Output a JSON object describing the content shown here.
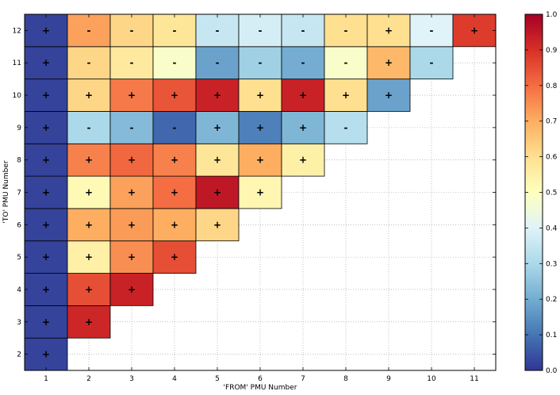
{
  "chart_data": {
    "type": "heatmap",
    "xlabel": "'FROM' PMU Number",
    "ylabel": "'TO' PMU Number",
    "x_ticks": [
      "1",
      "2",
      "3",
      "4",
      "5",
      "6",
      "7",
      "8",
      "9",
      "10",
      "11"
    ],
    "y_ticks": [
      "2",
      "3",
      "4",
      "5",
      "6",
      "7",
      "8",
      "9",
      "10",
      "11",
      "12"
    ],
    "colorbar": {
      "colormap": "RdYlBu_r",
      "range": [
        0.0,
        1.0
      ],
      "ticks": [
        "0.0",
        "0.1",
        "0.2",
        "0.3",
        "0.4",
        "0.5",
        "0.6",
        "0.7",
        "0.8",
        "0.9",
        "1.0"
      ]
    },
    "grid": "dotted",
    "cells": [
      {
        "from": 1,
        "to": 2,
        "value": 0.02,
        "sign": "+"
      },
      {
        "from": 1,
        "to": 3,
        "value": 0.02,
        "sign": "+"
      },
      {
        "from": 2,
        "to": 3,
        "value": 0.92,
        "sign": "+"
      },
      {
        "from": 1,
        "to": 4,
        "value": 0.02,
        "sign": "+"
      },
      {
        "from": 2,
        "to": 4,
        "value": 0.85,
        "sign": "+"
      },
      {
        "from": 3,
        "to": 4,
        "value": 0.93,
        "sign": "+"
      },
      {
        "from": 1,
        "to": 5,
        "value": 0.02,
        "sign": "+"
      },
      {
        "from": 2,
        "to": 5,
        "value": 0.55,
        "sign": "+"
      },
      {
        "from": 3,
        "to": 5,
        "value": 0.75,
        "sign": "+"
      },
      {
        "from": 4,
        "to": 5,
        "value": 0.85,
        "sign": "+"
      },
      {
        "from": 1,
        "to": 6,
        "value": 0.02,
        "sign": "+"
      },
      {
        "from": 2,
        "to": 6,
        "value": 0.7,
        "sign": "+"
      },
      {
        "from": 3,
        "to": 6,
        "value": 0.73,
        "sign": "+"
      },
      {
        "from": 4,
        "to": 6,
        "value": 0.7,
        "sign": "+"
      },
      {
        "from": 5,
        "to": 6,
        "value": 0.62,
        "sign": "+"
      },
      {
        "from": 1,
        "to": 7,
        "value": 0.02,
        "sign": "+"
      },
      {
        "from": 2,
        "to": 7,
        "value": 0.52,
        "sign": "+"
      },
      {
        "from": 3,
        "to": 7,
        "value": 0.72,
        "sign": "+"
      },
      {
        "from": 4,
        "to": 7,
        "value": 0.8,
        "sign": "+"
      },
      {
        "from": 5,
        "to": 7,
        "value": 0.95,
        "sign": "+"
      },
      {
        "from": 6,
        "to": 7,
        "value": 0.53,
        "sign": "+"
      },
      {
        "from": 1,
        "to": 8,
        "value": 0.02,
        "sign": "+"
      },
      {
        "from": 2,
        "to": 8,
        "value": 0.77,
        "sign": "+"
      },
      {
        "from": 3,
        "to": 8,
        "value": 0.81,
        "sign": "+"
      },
      {
        "from": 4,
        "to": 8,
        "value": 0.77,
        "sign": "+"
      },
      {
        "from": 5,
        "to": 8,
        "value": 0.58,
        "sign": "+"
      },
      {
        "from": 6,
        "to": 8,
        "value": 0.7,
        "sign": "+"
      },
      {
        "from": 7,
        "to": 8,
        "value": 0.55,
        "sign": "+"
      },
      {
        "from": 1,
        "to": 9,
        "value": 0.02,
        "sign": "+"
      },
      {
        "from": 2,
        "to": 9,
        "value": 0.3,
        "sign": "-"
      },
      {
        "from": 3,
        "to": 9,
        "value": 0.23,
        "sign": "-"
      },
      {
        "from": 4,
        "to": 9,
        "value": 0.08,
        "sign": "-"
      },
      {
        "from": 5,
        "to": 9,
        "value": 0.22,
        "sign": "+"
      },
      {
        "from": 6,
        "to": 9,
        "value": 0.12,
        "sign": "+"
      },
      {
        "from": 7,
        "to": 9,
        "value": 0.22,
        "sign": "+"
      },
      {
        "from": 8,
        "to": 9,
        "value": 0.32,
        "sign": "-"
      },
      {
        "from": 1,
        "to": 10,
        "value": 0.02,
        "sign": "+"
      },
      {
        "from": 2,
        "to": 10,
        "value": 0.62,
        "sign": "+"
      },
      {
        "from": 3,
        "to": 10,
        "value": 0.78,
        "sign": "+"
      },
      {
        "from": 4,
        "to": 10,
        "value": 0.84,
        "sign": "+"
      },
      {
        "from": 5,
        "to": 10,
        "value": 0.93,
        "sign": "+"
      },
      {
        "from": 6,
        "to": 10,
        "value": 0.6,
        "sign": "+"
      },
      {
        "from": 7,
        "to": 10,
        "value": 0.93,
        "sign": "+"
      },
      {
        "from": 8,
        "to": 10,
        "value": 0.6,
        "sign": "+"
      },
      {
        "from": 9,
        "to": 10,
        "value": 0.18,
        "sign": "+"
      },
      {
        "from": 1,
        "to": 11,
        "value": 0.02,
        "sign": "+"
      },
      {
        "from": 2,
        "to": 11,
        "value": 0.62,
        "sign": "-"
      },
      {
        "from": 3,
        "to": 11,
        "value": 0.57,
        "sign": "-"
      },
      {
        "from": 4,
        "to": 11,
        "value": 0.48,
        "sign": "-"
      },
      {
        "from": 5,
        "to": 11,
        "value": 0.18,
        "sign": "-"
      },
      {
        "from": 6,
        "to": 11,
        "value": 0.28,
        "sign": "-"
      },
      {
        "from": 7,
        "to": 11,
        "value": 0.2,
        "sign": "-"
      },
      {
        "from": 8,
        "to": 11,
        "value": 0.48,
        "sign": "-"
      },
      {
        "from": 9,
        "to": 11,
        "value": 0.68,
        "sign": "+"
      },
      {
        "from": 10,
        "to": 11,
        "value": 0.3,
        "sign": "-"
      },
      {
        "from": 1,
        "to": 12,
        "value": 0.02,
        "sign": "+"
      },
      {
        "from": 2,
        "to": 12,
        "value": 0.72,
        "sign": "-"
      },
      {
        "from": 3,
        "to": 12,
        "value": 0.62,
        "sign": "-"
      },
      {
        "from": 4,
        "to": 12,
        "value": 0.58,
        "sign": "-"
      },
      {
        "from": 5,
        "to": 12,
        "value": 0.35,
        "sign": "-"
      },
      {
        "from": 6,
        "to": 12,
        "value": 0.38,
        "sign": "-"
      },
      {
        "from": 7,
        "to": 12,
        "value": 0.35,
        "sign": "-"
      },
      {
        "from": 8,
        "to": 12,
        "value": 0.6,
        "sign": "-"
      },
      {
        "from": 9,
        "to": 12,
        "value": 0.6,
        "sign": "+"
      },
      {
        "from": 10,
        "to": 12,
        "value": 0.4,
        "sign": "-"
      },
      {
        "from": 11,
        "to": 12,
        "value": 0.88,
        "sign": "+"
      }
    ]
  }
}
